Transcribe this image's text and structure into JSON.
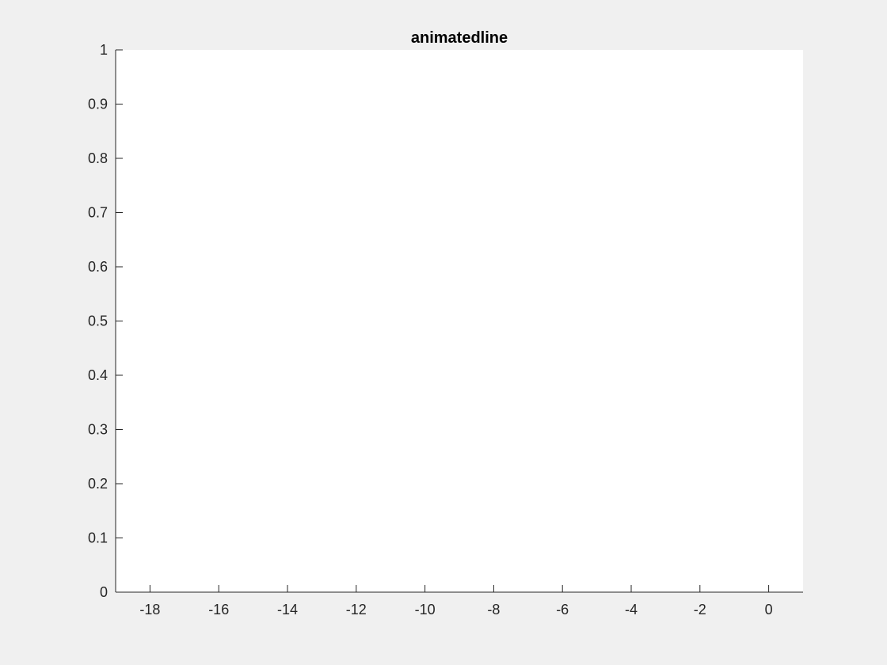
{
  "chart_data": {
    "type": "line",
    "title": "animatedline",
    "xlabel": "",
    "ylabel": "",
    "xlim": [
      -19,
      1
    ],
    "ylim": [
      0,
      1
    ],
    "x_ticks": [
      -18,
      -16,
      -14,
      -12,
      -10,
      -8,
      -6,
      -4,
      -2,
      0
    ],
    "x_tick_labels": [
      "-18",
      "-16",
      "-14",
      "-12",
      "-10",
      "-8",
      "-6",
      "-4",
      "-2",
      "0"
    ],
    "y_ticks": [
      0,
      0.1,
      0.2,
      0.3,
      0.4,
      0.5,
      0.6,
      0.7,
      0.8,
      0.9,
      1
    ],
    "y_tick_labels": [
      "0",
      "0.1",
      "0.2",
      "0.3",
      "0.4",
      "0.5",
      "0.6",
      "0.7",
      "0.8",
      "0.9",
      "1"
    ],
    "grid": false,
    "series": [],
    "colors": {
      "figure_background": "#f0f0f0",
      "axes_background": "#ffffff",
      "axis_color": "#262626"
    }
  }
}
